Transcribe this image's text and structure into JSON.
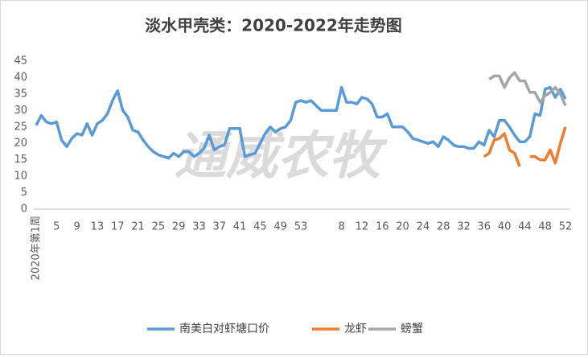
{
  "chart_data": {
    "type": "line",
    "title": "淡水甲壳类：2020-2022年走势图",
    "watermark": "通威农牧",
    "categories": [
      "2020年第1周",
      null,
      null,
      null,
      "5",
      null,
      null,
      null,
      "9",
      null,
      null,
      null,
      "13",
      null,
      null,
      null,
      "17",
      null,
      null,
      null,
      "21",
      null,
      null,
      null,
      "25",
      null,
      null,
      null,
      "29",
      null,
      null,
      null,
      "33",
      null,
      null,
      null,
      "37",
      null,
      null,
      null,
      "41",
      null,
      null,
      null,
      "45",
      null,
      null,
      null,
      "49",
      null,
      null,
      null,
      "53",
      null,
      null,
      null,
      null,
      null,
      null,
      null,
      "8",
      null,
      null,
      null,
      "12",
      null,
      null,
      null,
      "16",
      null,
      null,
      null,
      "20",
      null,
      null,
      null,
      "24",
      null,
      null,
      null,
      "28",
      null,
      null,
      null,
      "32",
      null,
      null,
      null,
      "36",
      null,
      null,
      null,
      "40",
      null,
      null,
      null,
      "44",
      null,
      null,
      null,
      "48",
      null,
      null,
      null,
      "52"
    ],
    "series": [
      {
        "name": "南美白对虾塘口价",
        "color": "#5b9bd5",
        "values": [
          25.5,
          28.5,
          26.5,
          26,
          26.5,
          21,
          19,
          21.5,
          23,
          22.5,
          26,
          22.5,
          26,
          27,
          29,
          33,
          36,
          30,
          28,
          24,
          23.5,
          21,
          19,
          17.5,
          16.5,
          16,
          15.5,
          17,
          16,
          17.5,
          17.5,
          16,
          17,
          18.5,
          22.5,
          18,
          19,
          19.5,
          24.5,
          24.5,
          24.5,
          16,
          16.5,
          17,
          20,
          23,
          25,
          23.5,
          24.5,
          25,
          27,
          32.5,
          33,
          32.5,
          33,
          31.5,
          30,
          30,
          30,
          30,
          37,
          32.5,
          32.5,
          32,
          34,
          33.5,
          32,
          28,
          28,
          29,
          25,
          25,
          25,
          23.5,
          21.5,
          21,
          20.5,
          20,
          20.5,
          19,
          22,
          21,
          19.5,
          19,
          19,
          18.5,
          18.5,
          20.5,
          19.5,
          24,
          22,
          27,
          27,
          25,
          22.5,
          20.5,
          20.5,
          22,
          29,
          28.5,
          36.5,
          37,
          34,
          36.5,
          33.5
        ]
      },
      {
        "name": "龙虾",
        "color": "#ed7d31",
        "values": [
          null,
          null,
          null,
          null,
          null,
          null,
          null,
          null,
          null,
          null,
          null,
          null,
          null,
          null,
          null,
          null,
          null,
          null,
          null,
          null,
          null,
          null,
          null,
          null,
          null,
          null,
          null,
          null,
          null,
          null,
          null,
          null,
          null,
          null,
          null,
          null,
          null,
          null,
          null,
          null,
          null,
          null,
          null,
          null,
          null,
          null,
          null,
          null,
          null,
          null,
          null,
          null,
          null,
          null,
          null,
          null,
          null,
          null,
          null,
          null,
          null,
          null,
          null,
          null,
          null,
          null,
          null,
          null,
          null,
          null,
          null,
          null,
          null,
          null,
          null,
          null,
          null,
          null,
          null,
          null,
          null,
          null,
          null,
          null,
          null,
          null,
          null,
          null,
          16,
          17,
          21,
          21.5,
          23,
          18,
          17,
          13,
          null,
          16,
          16,
          15,
          15,
          18,
          14,
          20,
          25
        ]
      },
      {
        "name": "螃蟹",
        "color": "#a5a5a5",
        "values": [
          null,
          null,
          null,
          null,
          null,
          null,
          null,
          null,
          null,
          null,
          null,
          null,
          null,
          null,
          null,
          null,
          null,
          null,
          null,
          null,
          null,
          null,
          null,
          null,
          null,
          null,
          null,
          null,
          null,
          null,
          null,
          null,
          null,
          null,
          null,
          null,
          null,
          null,
          null,
          null,
          null,
          null,
          null,
          null,
          null,
          null,
          null,
          null,
          null,
          null,
          null,
          null,
          null,
          null,
          null,
          null,
          null,
          null,
          null,
          null,
          null,
          null,
          null,
          null,
          null,
          null,
          null,
          null,
          null,
          null,
          null,
          null,
          null,
          null,
          null,
          null,
          null,
          null,
          null,
          null,
          null,
          null,
          null,
          null,
          null,
          null,
          null,
          null,
          null,
          39.5,
          40.5,
          40.5,
          37,
          40,
          41.5,
          39,
          39,
          35.5,
          35.5,
          32.5,
          34.5,
          35.5,
          37,
          35,
          31.5
        ]
      }
    ],
    "ylim": [
      0,
      45
    ],
    "yticks": [
      0,
      5,
      10,
      15,
      20,
      25,
      30,
      35,
      40,
      45
    ],
    "grid": false,
    "legend": "bottom"
  }
}
